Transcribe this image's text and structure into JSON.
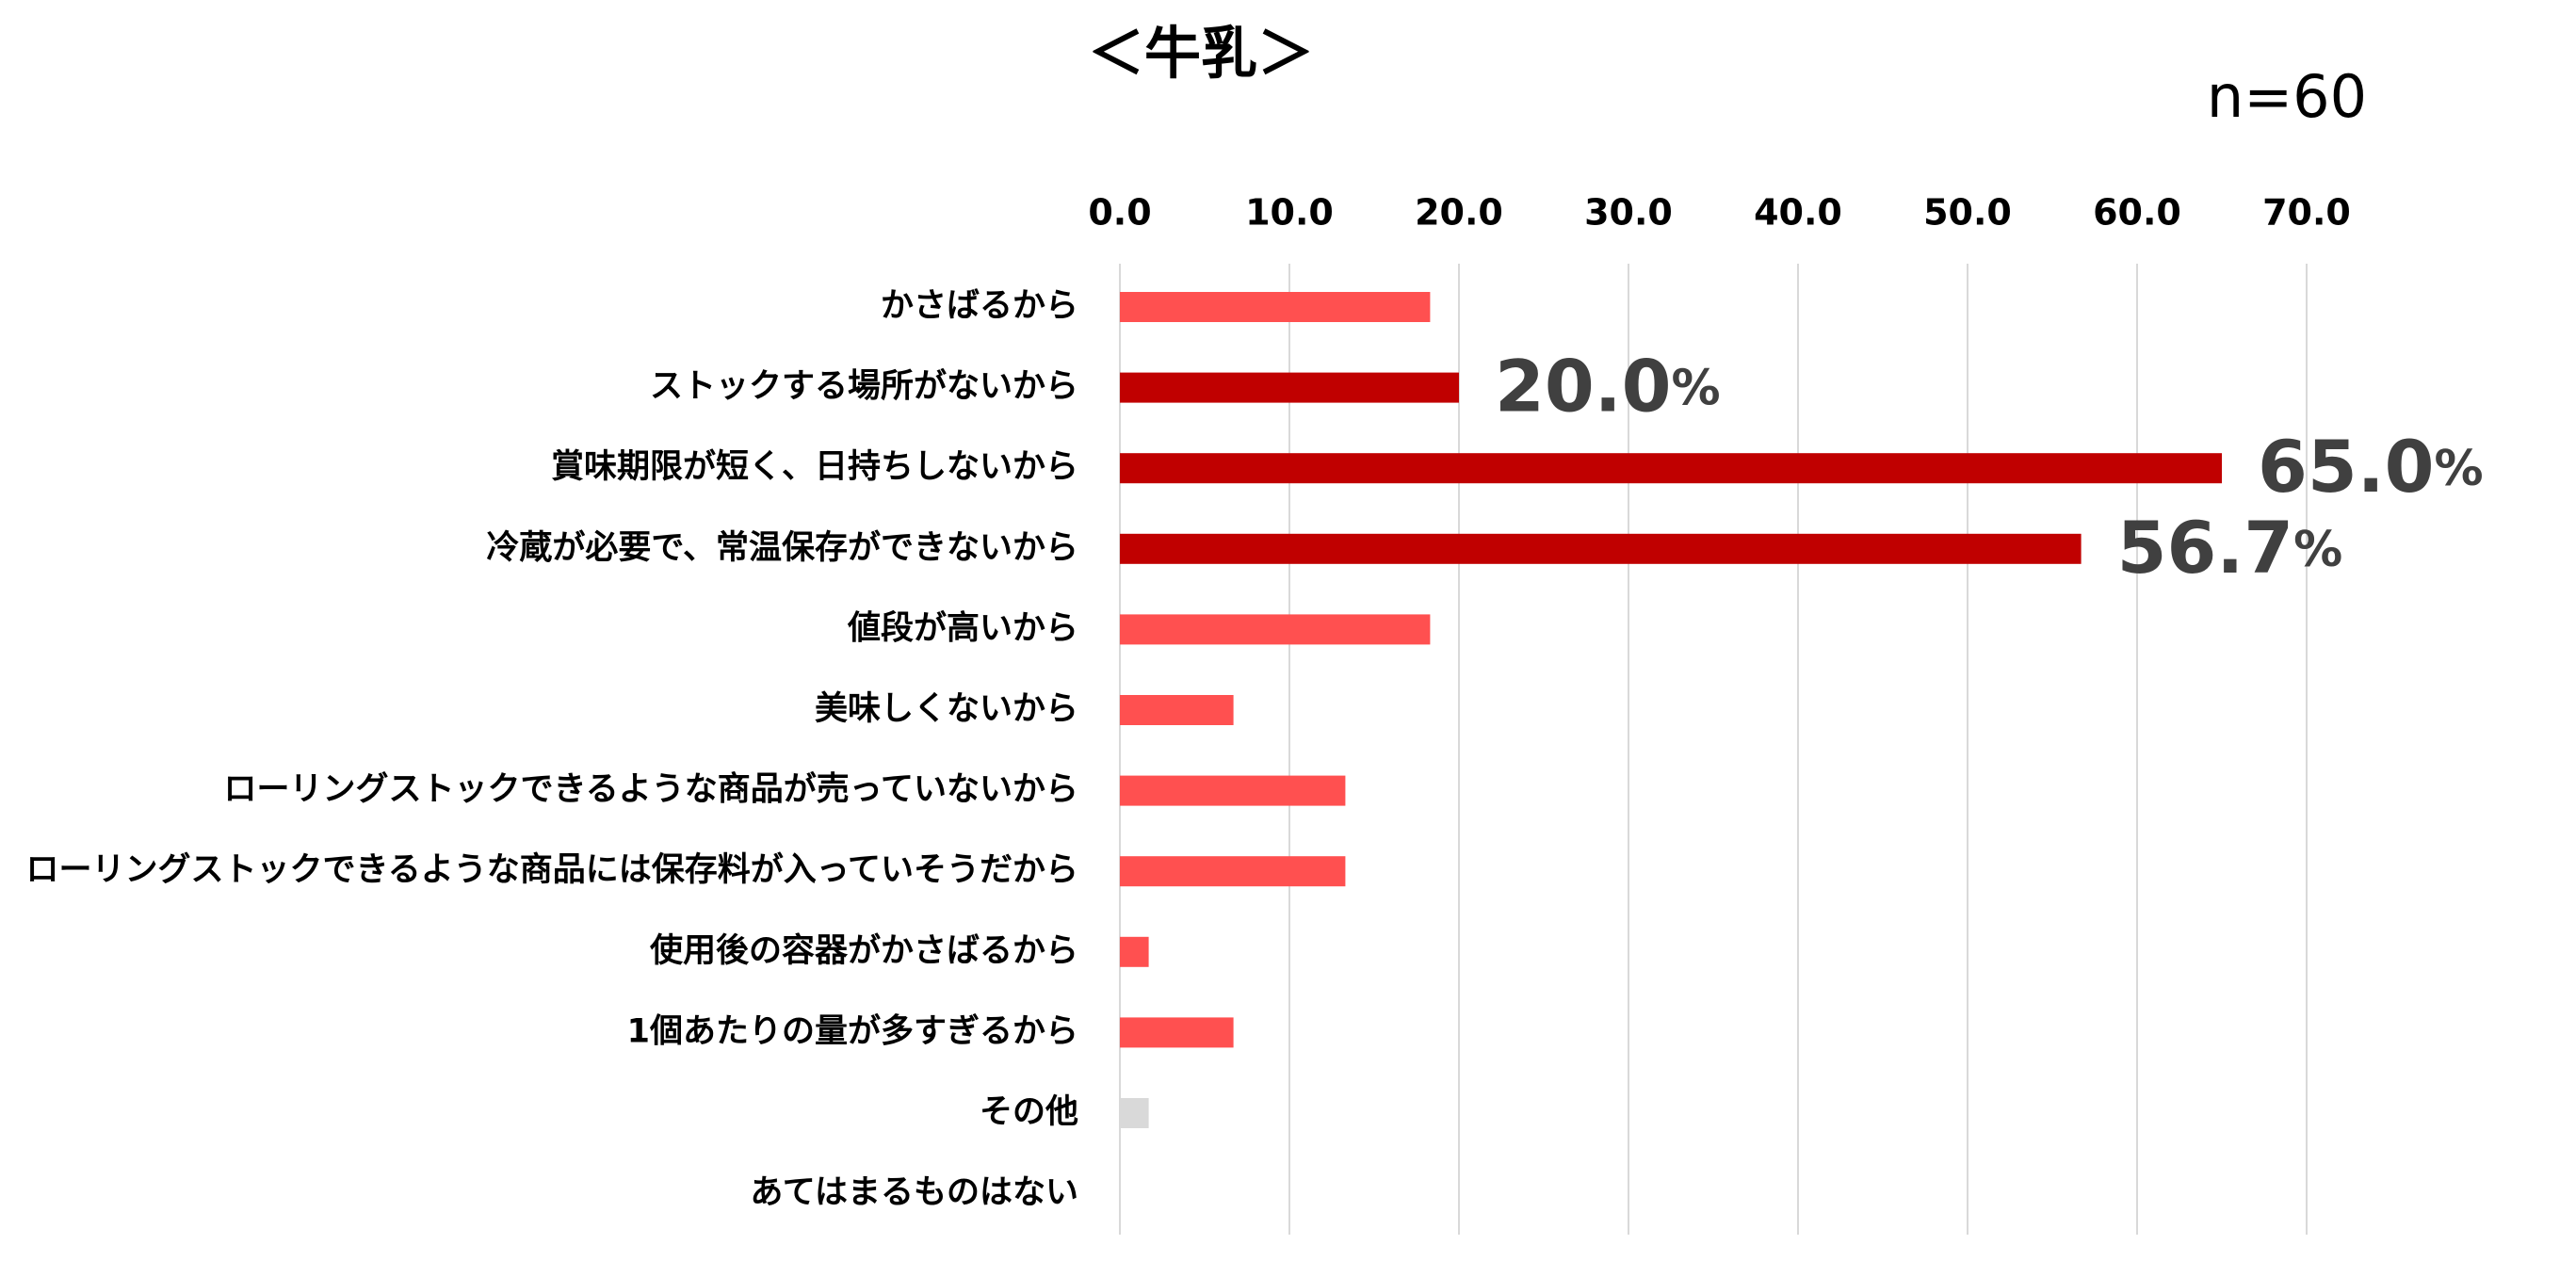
{
  "chart_data": {
    "type": "barh",
    "title": "＜牛乳＞",
    "annotation": "n=60",
    "categories": [
      "かさばるから",
      "ストックする場所がないから",
      "賞味期限が短く、日持ちしないから",
      "冷蔵が必要で、常温保存ができないから",
      "値段が高いから",
      "美味しくないから",
      "ローリングストックできるような商品が売っていないから",
      "ローリングストックできるような商品には保存料が入っていそうだから",
      "使用後の容器がかさばるから",
      "1個あたりの量が多すぎるから",
      "その他",
      "あてはまるものはない"
    ],
    "values": [
      18.3,
      20.0,
      65.0,
      56.7,
      18.3,
      6.7,
      13.3,
      13.3,
      1.7,
      6.7,
      1.7,
      0.0
    ],
    "value_labels": [
      null,
      "20.0%",
      "65.0%",
      "56.7%",
      null,
      null,
      null,
      null,
      null,
      null,
      null,
      null
    ],
    "colors": [
      "#ff5050",
      "#c00000",
      "#c00000",
      "#c00000",
      "#ff5050",
      "#ff5050",
      "#ff5050",
      "#ff5050",
      "#ff5050",
      "#ff5050",
      "#d9d9d9",
      "#ff5050"
    ],
    "xlim": [
      0,
      70
    ],
    "xticks": [
      {
        "value": 0,
        "label": "0.0"
      },
      {
        "value": 10,
        "label": "10.0"
      },
      {
        "value": 20,
        "label": "20.0"
      },
      {
        "value": 30,
        "label": "30.0"
      },
      {
        "value": 40,
        "label": "40.0"
      },
      {
        "value": 50,
        "label": "50.0"
      },
      {
        "value": 60,
        "label": "60.0"
      },
      {
        "value": 70,
        "label": "70.0"
      }
    ],
    "grid": true
  }
}
